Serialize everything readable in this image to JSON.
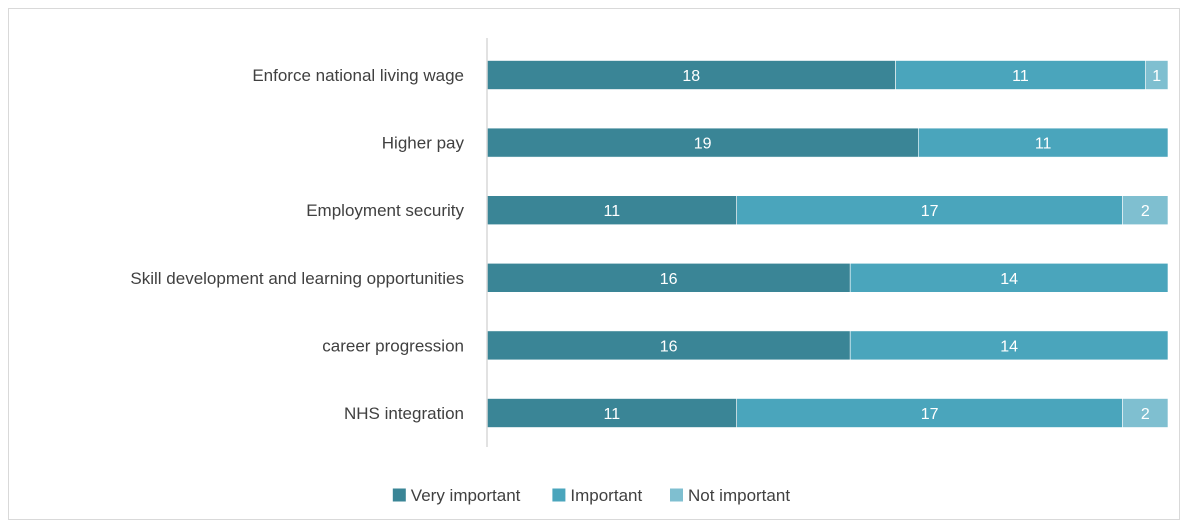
{
  "chart_data": {
    "type": "bar",
    "orientation": "horizontal",
    "stacked": true,
    "title": "",
    "xlabel": "",
    "ylabel": "",
    "categories": [
      "Enforce national living wage",
      "Higher pay",
      "Employment security",
      "Skill development and learning opportunities",
      "career progression",
      "NHS integration"
    ],
    "series": [
      {
        "name": "Very important",
        "color": "#3a8596",
        "values": [
          18,
          19,
          11,
          16,
          16,
          11
        ]
      },
      {
        "name": "Important",
        "color": "#4aa5bc",
        "values": [
          11,
          11,
          17,
          14,
          14,
          17
        ]
      },
      {
        "name": "Not important",
        "color": "#7fbfd0",
        "values": [
          1,
          0,
          2,
          0,
          0,
          2
        ]
      }
    ],
    "legend_position": "bottom",
    "grid": false
  }
}
